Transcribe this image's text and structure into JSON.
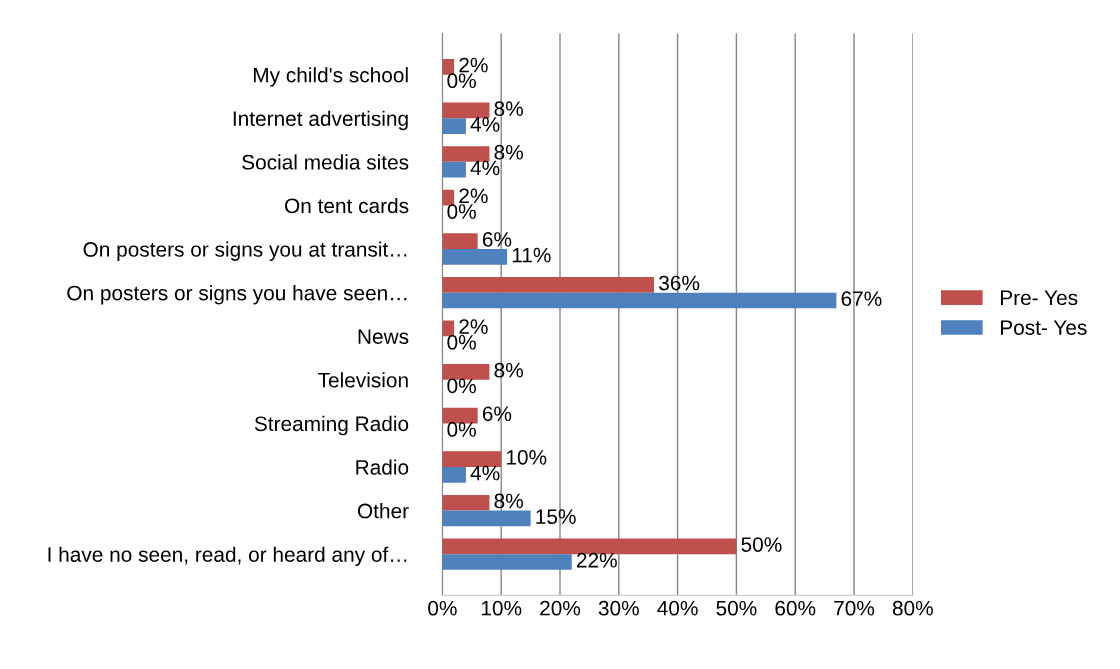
{
  "chart_data": {
    "type": "bar",
    "orientation": "horizontal",
    "categories": [
      "My child's school",
      "Internet advertising",
      "Social media sites",
      "On tent cards",
      "On posters or signs you at transit…",
      "On posters or signs you have seen…",
      "News",
      "Television",
      "Streaming Radio",
      "Radio",
      "Other",
      "I have no seen, read, or heard any of…"
    ],
    "series": [
      {
        "name": "Pre- Yes",
        "color": "#c0504d",
        "values": [
          2,
          8,
          8,
          2,
          6,
          36,
          2,
          8,
          6,
          10,
          8,
          50
        ],
        "value_labels": [
          "2%",
          "8%",
          "8%",
          "2%",
          "6%",
          "36%",
          "2%",
          "8%",
          "6%",
          "10%",
          "8%",
          "50%"
        ]
      },
      {
        "name": "Post- Yes",
        "color": "#4f81bd",
        "values": [
          0,
          4,
          4,
          0,
          11,
          67,
          0,
          0,
          0,
          4,
          15,
          22
        ],
        "value_labels": [
          "0%",
          "4%",
          "4%",
          "0%",
          "11%",
          "67%",
          "0%",
          "0%",
          "0%",
          "4%",
          "15%",
          "22%"
        ]
      }
    ],
    "xlim": [
      0,
      80
    ],
    "xticks": [
      {
        "value": 0,
        "label": "0%"
      },
      {
        "value": 10,
        "label": "10%"
      },
      {
        "value": 20,
        "label": "20%"
      },
      {
        "value": 30,
        "label": "30%"
      },
      {
        "value": 40,
        "label": "40%"
      },
      {
        "value": 50,
        "label": "50%"
      },
      {
        "value": 60,
        "label": "60%"
      },
      {
        "value": 70,
        "label": "70%"
      },
      {
        "value": 80,
        "label": "80%"
      }
    ],
    "grid": "x",
    "legend": "right"
  }
}
